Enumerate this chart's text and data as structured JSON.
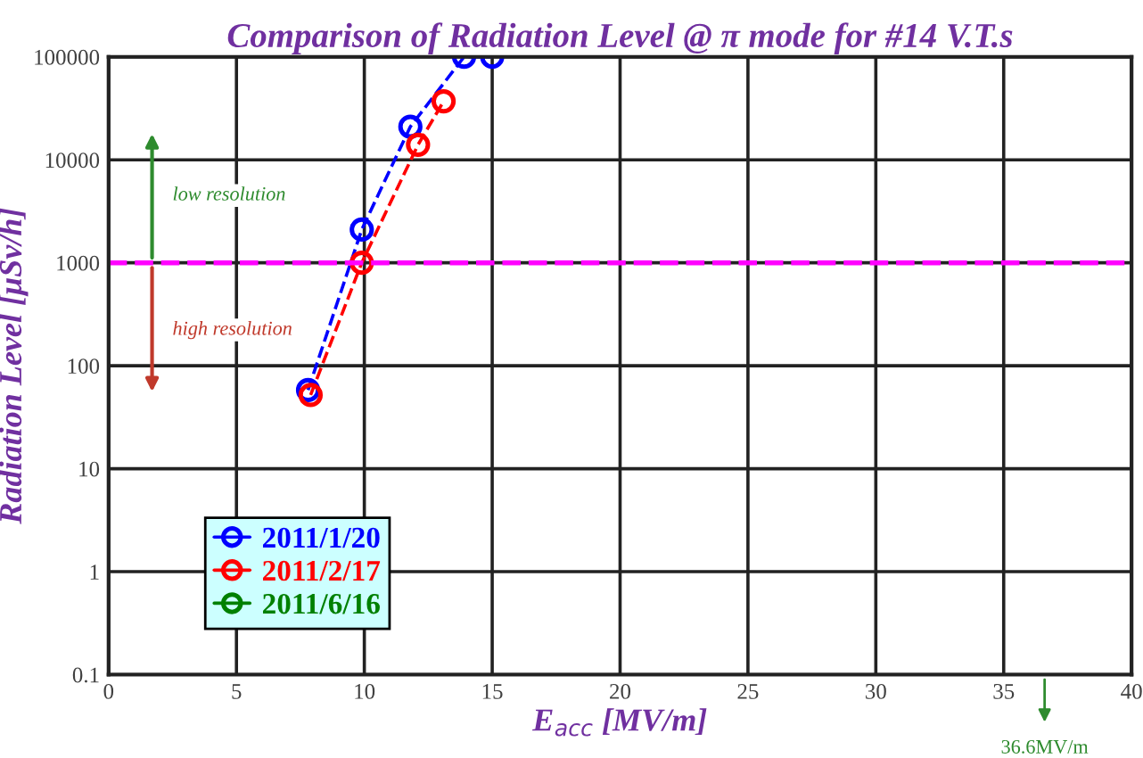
{
  "chart_data": {
    "type": "line",
    "title": "Comparison of Radiation Level @ π mode for #14 V.T.s",
    "xlabel": "E$_{acc}$ [MV/m]",
    "ylabel": "Radiation Level [μSv/h]",
    "series": [
      {
        "name": "2011/1/20",
        "color": "#0000ff",
        "x": [
          7.8,
          9.9,
          11.8,
          13.9,
          15
        ],
        "values": [
          58,
          2100,
          21000,
          100000,
          100000
        ]
      },
      {
        "name": "2011/2/17",
        "color": "#ff0000",
        "x": [
          7.9,
          9.9,
          12.1,
          13.1
        ],
        "values": [
          52,
          1000,
          14000,
          37000
        ]
      },
      {
        "name": "2011/6/16",
        "color": "#008000"
      }
    ],
    "xlim": [
      0,
      40
    ],
    "xticks": [
      0,
      5,
      10,
      15,
      20,
      25,
      30,
      35,
      40
    ],
    "ylim": [
      0.1,
      100000
    ],
    "yticks": [
      0.1,
      1,
      10,
      100,
      1000,
      10000,
      100000
    ],
    "log": "y",
    "grid": true,
    "legend": "bottom left",
    "marker": "circle",
    "line_style": "dashed",
    "ref_lines": [
      {
        "axis": "y",
        "value": 1000,
        "color": "#ff00ff",
        "line_style": "dashed"
      }
    ],
    "annotations": [
      "low resolution",
      "high resolution",
      "36.6MV/m"
    ]
  }
}
